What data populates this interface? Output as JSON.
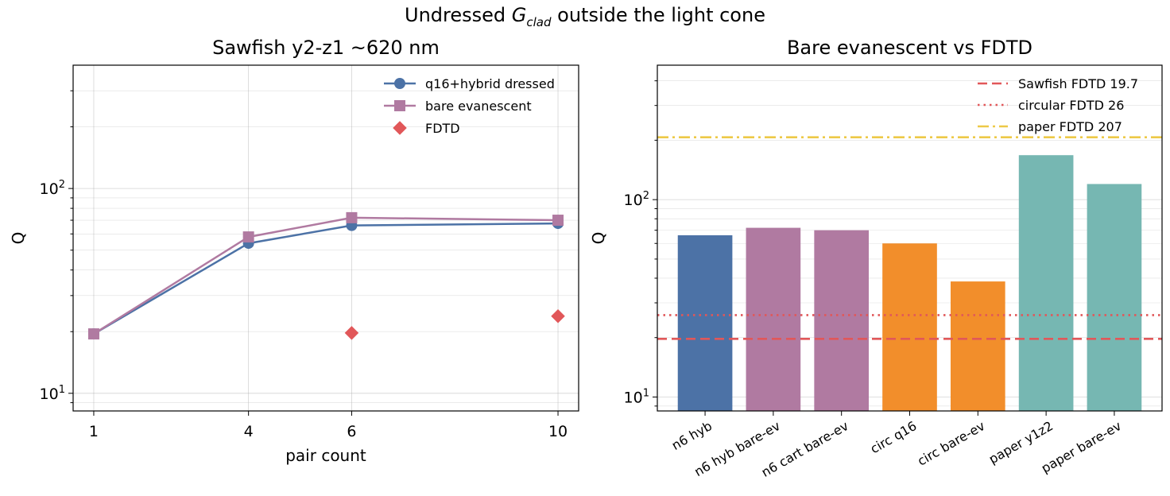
{
  "figure": {
    "suptitle_prefix": "Undressed ",
    "suptitle_symbol": "G",
    "suptitle_subscript": "clad",
    "suptitle_suffix": " outside the light cone"
  },
  "chart_data": [
    {
      "type": "line",
      "title": "Sawfish y2-z1 ~620 nm",
      "xlabel": "pair count",
      "ylabel": "Q",
      "yscale": "log",
      "xlim": [
        0.6,
        10.4
      ],
      "ylim": [
        8.2,
        400
      ],
      "x_ticks": [
        1,
        4,
        6,
        10
      ],
      "y_ticks": [
        {
          "value": 10,
          "base": "10",
          "exp": "1"
        },
        {
          "value": 100,
          "base": "10",
          "exp": "2"
        }
      ],
      "grid": true,
      "legend_position": "top-right",
      "series": [
        {
          "name": "q16+hybrid dressed",
          "marker": "circle",
          "color": "#4c72a6",
          "x": [
            1,
            4,
            6,
            10
          ],
          "values": [
            19.5,
            54,
            66,
            67.5
          ]
        },
        {
          "name": "bare evanescent",
          "marker": "square",
          "color": "#b07aa1",
          "x": [
            1,
            4,
            6,
            10
          ],
          "values": [
            19.5,
            58,
            72,
            70
          ]
        },
        {
          "name": "FDTD",
          "marker": "diamond",
          "color": "#e15759",
          "line": false,
          "x": [
            6,
            10
          ],
          "values": [
            19.7,
            23.8
          ]
        }
      ]
    },
    {
      "type": "bar",
      "title": "Bare evanescent vs FDTD",
      "xlabel": "",
      "ylabel": "Q",
      "yscale": "log",
      "ylim": [
        8.5,
        480
      ],
      "y_ticks": [
        {
          "value": 10,
          "base": "10",
          "exp": "1"
        },
        {
          "value": 100,
          "base": "10",
          "exp": "2"
        }
      ],
      "grid": true,
      "legend_position": "top-right",
      "categories": [
        "n6 hyb",
        "n6 hyb bare-ev",
        "n6 cart bare-ev",
        "circ q16",
        "circ bare-ev",
        "paper y1z2",
        "paper bare-ev"
      ],
      "values": [
        66,
        72,
        70,
        60,
        38.5,
        168,
        120
      ],
      "bar_colors": [
        "#4c72a6",
        "#b07aa1",
        "#b07aa1",
        "#f28e2b",
        "#f28e2b",
        "#76b7b2",
        "#76b7b2"
      ],
      "reference_lines": [
        {
          "name": "Sawfish FDTD 19.7",
          "value": 19.7,
          "style": "dashed",
          "color": "#e15759"
        },
        {
          "name": "circular FDTD 26",
          "value": 26,
          "style": "dotted",
          "color": "#e15759"
        },
        {
          "name": "paper FDTD 207",
          "value": 207,
          "style": "dashdot",
          "color": "#edc948"
        }
      ]
    }
  ]
}
